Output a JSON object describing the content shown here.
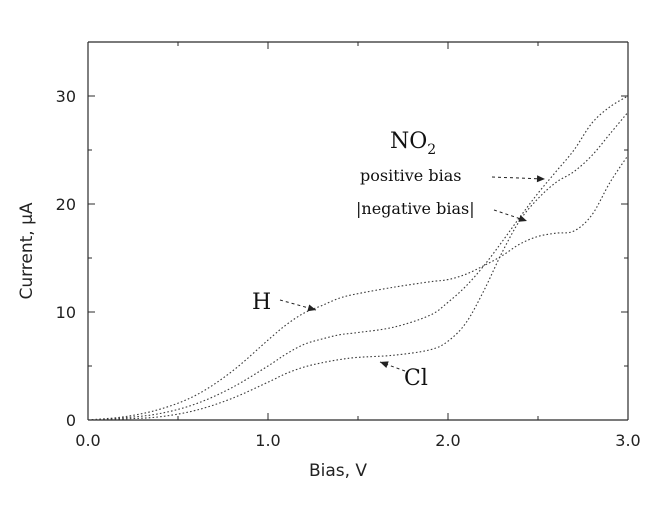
{
  "chart_data": {
    "type": "line",
    "xlabel": "Bias, V",
    "ylabel": "Current, μA",
    "xlim": [
      0,
      3.0
    ],
    "ylim": [
      0,
      35
    ],
    "x_ticks": [
      "0.0",
      "1.0",
      "2.0",
      "3.0"
    ],
    "x_tick_values": [
      0,
      1,
      2,
      3
    ],
    "y_ticks": [
      "0",
      "10",
      "20",
      "30"
    ],
    "y_tick_values": [
      0,
      10,
      20,
      30
    ],
    "grid": false,
    "series": [
      {
        "name": "H",
        "x": [
          0.0,
          0.2,
          0.4,
          0.6,
          0.8,
          1.0,
          1.1,
          1.2,
          1.3,
          1.4,
          1.5,
          1.7,
          1.9,
          2.0,
          2.1,
          2.2,
          2.3,
          2.4,
          2.5,
          2.6,
          2.7,
          2.8,
          2.9,
          3.0
        ],
        "y": [
          0.0,
          0.3,
          1.0,
          2.3,
          4.5,
          7.4,
          8.8,
          9.9,
          10.6,
          11.3,
          11.7,
          12.3,
          12.8,
          13.0,
          13.5,
          14.3,
          15.2,
          16.3,
          17.0,
          17.3,
          17.5,
          19.0,
          22.0,
          24.5
        ]
      },
      {
        "name": "NO2",
        "x": [
          0.0,
          0.2,
          0.4,
          0.6,
          0.8,
          1.0,
          1.1,
          1.2,
          1.3,
          1.4,
          1.5,
          1.7,
          1.9,
          2.0,
          2.1,
          2.2,
          2.3,
          2.4,
          2.5,
          2.6,
          2.7,
          2.8,
          2.9,
          3.0
        ],
        "y": [
          0.0,
          0.2,
          0.6,
          1.5,
          3.0,
          5.0,
          6.1,
          7.0,
          7.5,
          7.9,
          8.1,
          8.6,
          9.7,
          10.9,
          12.4,
          14.3,
          16.5,
          18.8,
          21.0,
          23.0,
          25.0,
          27.5,
          29.0,
          30.0
        ]
      },
      {
        "name": "Cl",
        "x": [
          0.0,
          0.2,
          0.4,
          0.6,
          0.8,
          1.0,
          1.1,
          1.2,
          1.3,
          1.4,
          1.5,
          1.7,
          1.9,
          2.0,
          2.1,
          2.2,
          2.3,
          2.4,
          2.5,
          2.6,
          2.7,
          2.8,
          2.9,
          3.0
        ],
        "y": [
          0.0,
          0.1,
          0.3,
          0.9,
          2.0,
          3.5,
          4.3,
          4.9,
          5.3,
          5.6,
          5.8,
          6.0,
          6.5,
          7.3,
          9.0,
          12.0,
          15.5,
          18.5,
          20.5,
          22.0,
          23.0,
          24.5,
          26.5,
          28.5
        ]
      }
    ],
    "annotations": {
      "no2_label": "NO",
      "no2_subscript": "2",
      "positive_bias": "positive bias",
      "negative_bias": "|negative bias|",
      "h_label": "H",
      "cl_label": "Cl"
    }
  }
}
